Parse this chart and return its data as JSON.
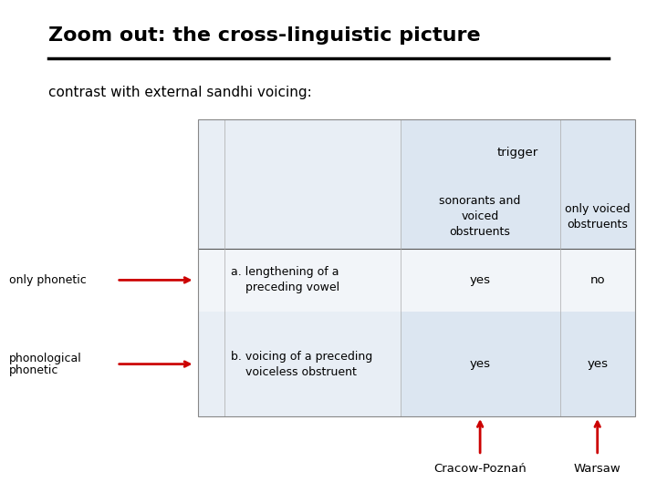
{
  "title": "Zoom out: the cross-linguistic picture",
  "subtitle": "contrast with external sandhi voicing:",
  "bg_color": "#ffffff",
  "table_bg": "#dce6f1",
  "table_bg_light": "#e8eef5",
  "row_a_vals": [
    "yes",
    "no"
  ],
  "row_b_vals": [
    "yes",
    "yes"
  ],
  "left_label_a": "only phonetic",
  "left_label_b_top": "phonological",
  "left_label_b_bot": "phonetic",
  "city_a": "Cracow-Poznań",
  "city_b": "Warsaw",
  "arrow_color": "#cc0000",
  "text_color": "#000000"
}
